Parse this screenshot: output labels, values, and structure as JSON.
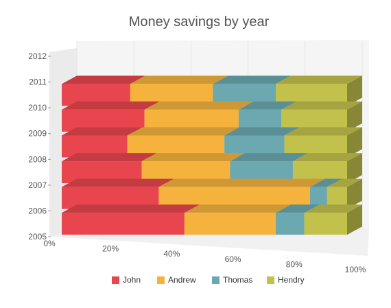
{
  "chart_data": {
    "type": "bar",
    "orientation": "horizontal",
    "stacked": "100%",
    "style": "3d",
    "title": "Money savings by year",
    "categories": [
      "2006",
      "2007",
      "2008",
      "2009",
      "2010",
      "2011"
    ],
    "y_axis_ticks": [
      "2005",
      "2006",
      "2007",
      "2008",
      "2009",
      "2010",
      "2011",
      "2012"
    ],
    "x_axis_ticks": [
      "0%",
      "20%",
      "40%",
      "60%",
      "80%",
      "100%"
    ],
    "xlim": [
      0,
      100
    ],
    "series": [
      {
        "name": "John",
        "color": "#e8454e",
        "values": [
          43,
          34,
          28,
          23,
          29,
          24
        ]
      },
      {
        "name": "Andrew",
        "color": "#f5b33d",
        "values": [
          32,
          53,
          31,
          34,
          33,
          29
        ]
      },
      {
        "name": "Thomas",
        "color": "#6ba8b0",
        "values": [
          10,
          6,
          22,
          21,
          15,
          22
        ]
      },
      {
        "name": "Hendry",
        "color": "#c2c14c",
        "values": [
          15,
          7,
          19,
          22,
          23,
          25
        ]
      }
    ],
    "legend_position": "bottom",
    "grid": true
  }
}
